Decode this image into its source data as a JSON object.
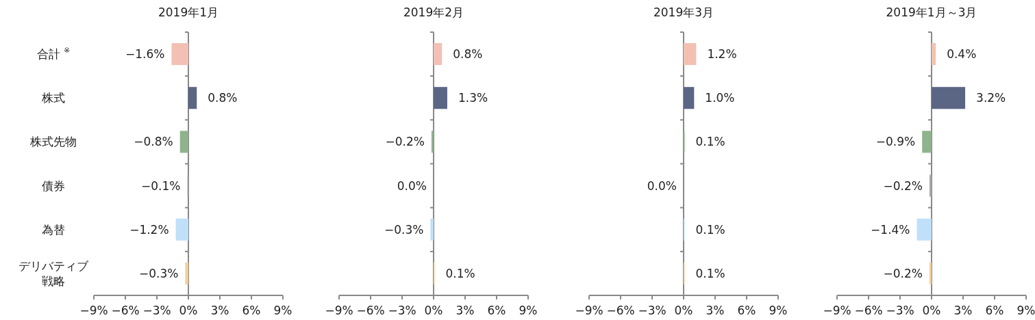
{
  "chart_data": [
    {
      "type": "bar",
      "orientation": "horizontal",
      "title": "2019年1月",
      "categories": [
        "合計 $^{※}$",
        "株式",
        "株式先物",
        "債券",
        "為替",
        "デリバティブ戦略"
      ],
      "values": [
        -1.6,
        0.8,
        -0.8,
        -0.1,
        -1.2,
        -0.3
      ],
      "colors": [
        "#f2c1b4",
        "#5b6584",
        "#8fb38c",
        "#a8a8a8",
        "#bfe0f8",
        "#f3cf9a"
      ],
      "value_labels": [
        "−1.6%",
        "0.8%",
        "−0.8%",
        "−0.1%",
        "−1.2%",
        "−0.3%"
      ],
      "xlim": [
        -9,
        9
      ],
      "xticks": [
        {
          "value": -9,
          "label": "−9%"
        },
        {
          "value": -6,
          "label": "−6%"
        },
        {
          "value": -3,
          "label": "−3%"
        },
        {
          "value": 0,
          "label": "0%"
        },
        {
          "value": 3,
          "label": "3%"
        },
        {
          "value": 6,
          "label": "6%"
        },
        {
          "value": 9,
          "label": "9%"
        }
      ]
    },
    {
      "type": "bar",
      "orientation": "horizontal",
      "title": "2019年2月",
      "categories": [
        null,
        null,
        null,
        null,
        null,
        null
      ],
      "tick_labels": "x",
      "values": [
        0.8,
        1.3,
        -0.2,
        0.0,
        -0.3,
        0.1
      ],
      "colors": [
        "#f2c1b4",
        "#5b6584",
        "#8fb38c",
        "#a8a8a8",
        "#bfe0f8",
        "#f3cf9a"
      ],
      "value_labels": [
        "0.8%",
        "1.3%",
        "−0.2%",
        "0.0%",
        "−0.3%",
        "0.1%"
      ],
      "xlim": [
        -9,
        9
      ],
      "xticks": [
        {
          "value": -9,
          "label": "−9%"
        },
        {
          "value": -6,
          "label": "−6%"
        },
        {
          "value": -3,
          "label": "−3%"
        },
        {
          "value": 0,
          "label": "0%"
        },
        {
          "value": 3,
          "label": "3%"
        },
        {
          "value": 6,
          "label": "6%"
        },
        {
          "value": 9,
          "label": "9%"
        }
      ]
    },
    {
      "type": "bar",
      "orientation": "horizontal",
      "title": "2019年3月",
      "categories": [
        null,
        null,
        null,
        null,
        null,
        null
      ],
      "tick_labels": "x",
      "values": [
        1.2,
        1.0,
        0.1,
        0.0,
        0.1,
        0.1
      ],
      "colors": [
        "#f2c1b4",
        "#5b6584",
        "#8fb38c",
        "#a8a8a8",
        "#bfe0f8",
        "#f3cf9a"
      ],
      "value_labels": [
        "1.2%",
        "1.0%",
        "0.1%",
        "0.0%",
        "0.1%",
        "0.1%"
      ],
      "xlim": [
        -9,
        9
      ],
      "xticks": [
        {
          "value": -9,
          "label": "−9%"
        },
        {
          "value": -6,
          "label": "−6%"
        },
        {
          "value": -3,
          "label": "−3%"
        },
        {
          "value": 0,
          "label": "0%"
        },
        {
          "value": 3,
          "label": "3%"
        },
        {
          "value": 6,
          "label": "6%"
        },
        {
          "value": 9,
          "label": "9%"
        }
      ]
    },
    {
      "type": "bar",
      "orientation": "horizontal",
      "title": "2019年1月～3月",
      "categories": [
        null,
        null,
        null,
        null,
        null,
        null
      ],
      "tick_labels": "x",
      "values": [
        0.4,
        3.2,
        -0.9,
        -0.2,
        -1.4,
        -0.2
      ],
      "colors": [
        "#f2c1b4",
        "#5b6584",
        "#8fb38c",
        "#a8a8a8",
        "#bfe0f8",
        "#f3cf9a"
      ],
      "value_labels": [
        "0.4%",
        "3.2%",
        "−0.9%",
        "−0.2%",
        "−1.4%",
        "−0.2%"
      ],
      "xlim": [
        -9,
        9
      ],
      "xticks": [
        {
          "value": -9,
          "label": "−9%"
        },
        {
          "value": -6,
          "label": "−6%"
        },
        {
          "value": -3,
          "label": "−3%"
        },
        {
          "value": 0,
          "label": "0%"
        },
        {
          "value": 3,
          "label": "3%"
        },
        {
          "value": 6,
          "label": "6%"
        },
        {
          "value": 9,
          "label": "9%"
        }
      ]
    }
  ]
}
